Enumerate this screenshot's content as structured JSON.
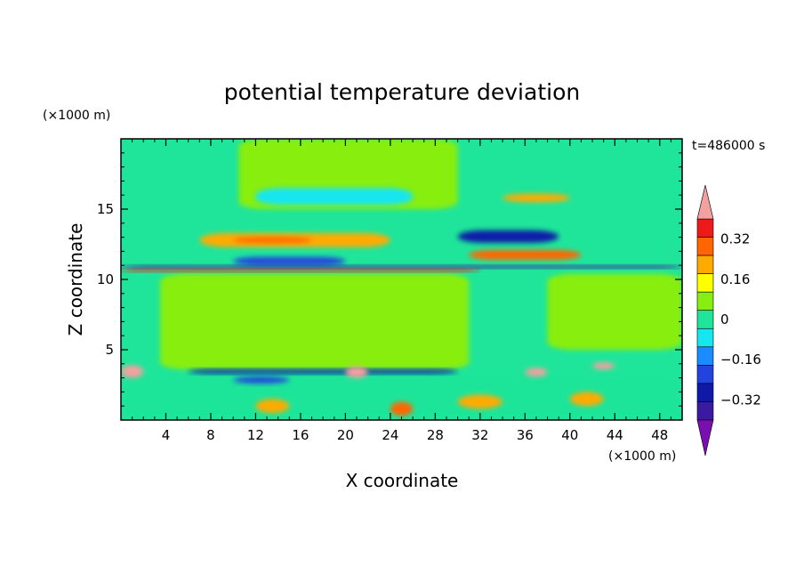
{
  "chart_data": {
    "type": "heatmap",
    "title": "potential temperature deviation",
    "xlabel": "X coordinate",
    "ylabel": "Z coordinate",
    "x_unit": "(×1000 m)",
    "y_unit": "(×1000 m)",
    "time_label": "t=486000 s",
    "xlim": [
      0,
      50
    ],
    "ylim": [
      0,
      20
    ],
    "x_ticks": [
      4,
      8,
      12,
      16,
      20,
      24,
      28,
      32,
      36,
      40,
      44,
      48
    ],
    "y_ticks": [
      5,
      10,
      15
    ],
    "colorbar": {
      "levels": [
        -0.48,
        -0.4,
        -0.32,
        -0.24,
        -0.16,
        -0.08,
        0,
        0.08,
        0.16,
        0.24,
        0.32,
        0.4
      ],
      "colors": [
        "#7a0fb0",
        "#3a1aa0",
        "#0d1aa8",
        "#2244dd",
        "#1a8cff",
        "#16e6f0",
        "#1fe59a",
        "#88ee11",
        "#ffff00",
        "#ffaa00",
        "#ff6600",
        "#ee1a1a",
        "#f4a0a0"
      ],
      "tick_labels": [
        "0.32",
        "0.16",
        "0",
        "−0.16",
        "−0.32"
      ],
      "tick_values": [
        0.32,
        0.16,
        0,
        -0.16,
        -0.32
      ],
      "extend": "both"
    },
    "bands": [
      {
        "z": [
          0,
          20
        ],
        "x": [
          0,
          50
        ],
        "level": -0.04
      },
      {
        "z": [
          15.0,
          20
        ],
        "x": [
          10.5,
          30
        ],
        "level": 0.04
      },
      {
        "z": [
          0,
          3.4
        ],
        "x": [
          0,
          50
        ],
        "level": -0.04
      },
      {
        "z": [
          3.6,
          10.4
        ],
        "x": [
          3.5,
          31
        ],
        "level": 0.04
      },
      {
        "z": [
          5.0,
          10.4
        ],
        "x": [
          38,
          50
        ],
        "level": 0.04
      },
      {
        "z": [
          15.3,
          16.5
        ],
        "x": [
          12,
          26
        ],
        "level": -0.12
      },
      {
        "z": [
          15.5,
          16.1
        ],
        "x": [
          34,
          40
        ],
        "level": 0.2
      },
      {
        "z": [
          12.3,
          13.3
        ],
        "x": [
          7,
          24
        ],
        "level": 0.2
      },
      {
        "z": [
          12.6,
          13.0
        ],
        "x": [
          10,
          17
        ],
        "level": 0.28
      },
      {
        "z": [
          12.6,
          13.5
        ],
        "x": [
          30,
          39
        ],
        "level": -0.36
      },
      {
        "z": [
          11.4,
          12.1
        ],
        "x": [
          31,
          41
        ],
        "level": 0.28
      },
      {
        "z": [
          11.0,
          11.6
        ],
        "x": [
          10,
          20
        ],
        "level": -0.28
      },
      {
        "z": [
          10.8,
          11.0
        ],
        "x": [
          0,
          50
        ],
        "level": -0.44
      },
      {
        "z": [
          10.55,
          10.75
        ],
        "x": [
          0,
          32
        ],
        "level": 0.36
      },
      {
        "z": [
          3.3,
          3.6
        ],
        "x": [
          6,
          30
        ],
        "level": -0.36
      },
      {
        "z": [
          2.6,
          3.1
        ],
        "x": [
          10,
          15
        ],
        "level": -0.28
      },
      {
        "z": [
          3.0,
          3.9
        ],
        "x": [
          0,
          2
        ],
        "level": 0.44
      },
      {
        "z": [
          3.0,
          3.8
        ],
        "x": [
          20,
          22
        ],
        "level": 0.44
      },
      {
        "z": [
          3.1,
          3.7
        ],
        "x": [
          36,
          38
        ],
        "level": 0.44
      },
      {
        "z": [
          3.6,
          4.1
        ],
        "x": [
          42,
          44
        ],
        "level": 0.44
      },
      {
        "z": [
          0.5,
          1.5
        ],
        "x": [
          12,
          15
        ],
        "level": 0.2
      },
      {
        "z": [
          0.8,
          1.8
        ],
        "x": [
          30,
          34
        ],
        "level": 0.2
      },
      {
        "z": [
          1.0,
          2.0
        ],
        "x": [
          40,
          43
        ],
        "level": 0.2
      },
      {
        "z": [
          0.3,
          1.3
        ],
        "x": [
          24,
          26
        ],
        "level": 0.28
      }
    ]
  }
}
